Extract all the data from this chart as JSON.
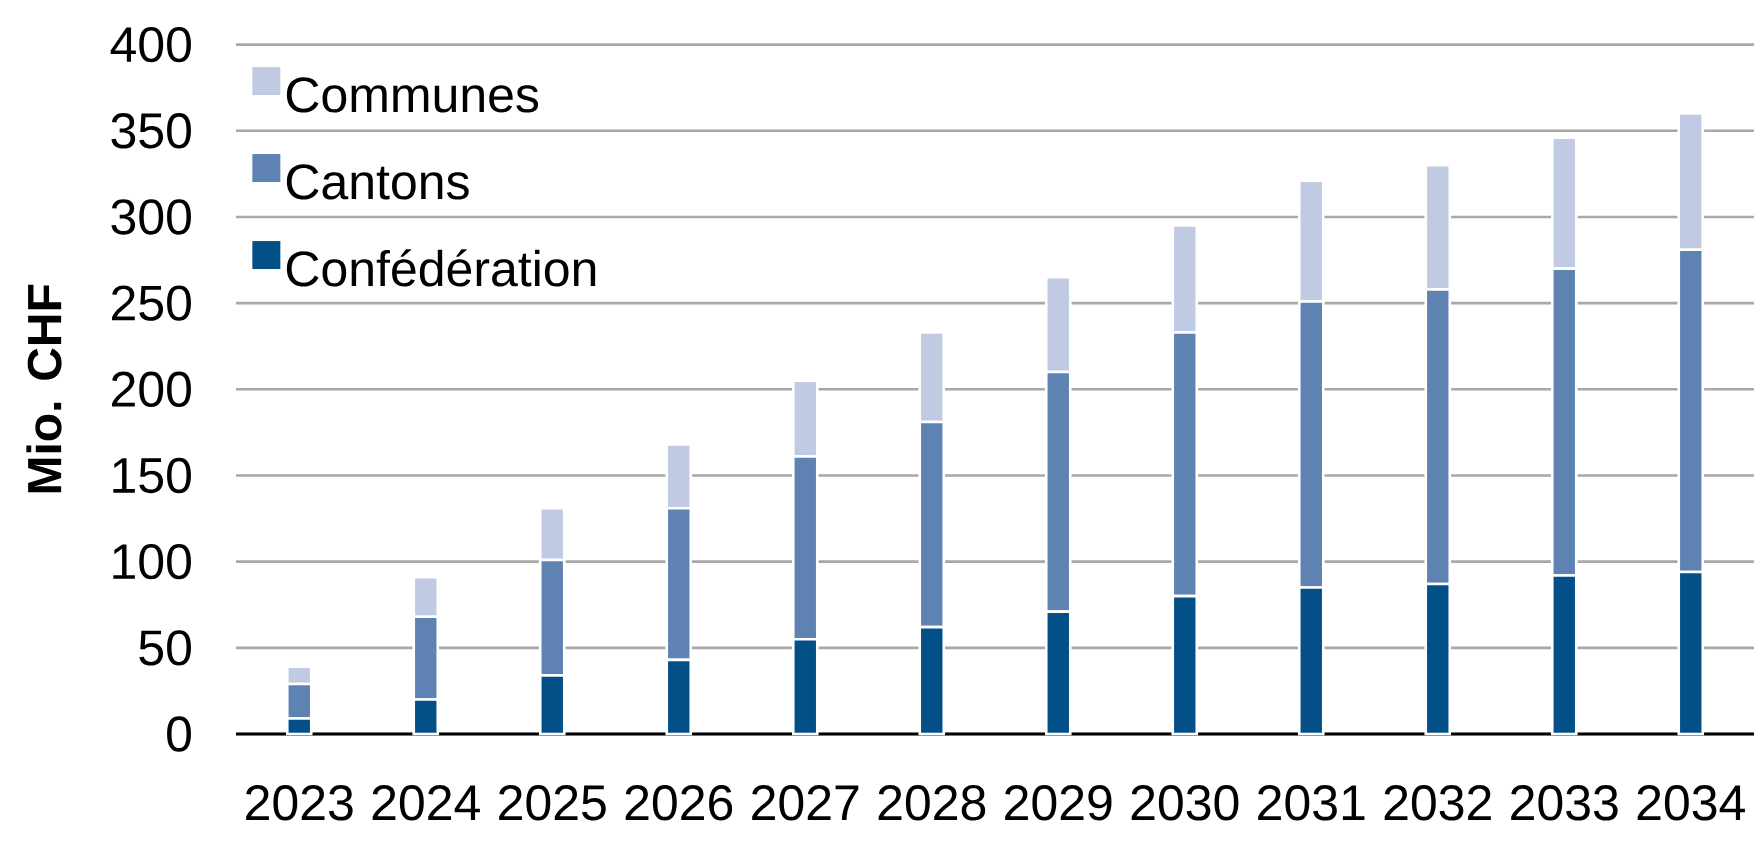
{
  "chart_data": {
    "type": "bar",
    "stacked": true,
    "ylabel": "Mio. CHF",
    "categories": [
      "2023",
      "2024",
      "2025",
      "2026",
      "2027",
      "2028",
      "2029",
      "2030",
      "2031",
      "2032",
      "2033",
      "2034"
    ],
    "series": [
      {
        "name": "Confédération",
        "color": "#034f87",
        "values": [
          9,
          20,
          34,
          43,
          55,
          62,
          71,
          80,
          85,
          87,
          92,
          94
        ]
      },
      {
        "name": "Cantons",
        "color": "#5e83b3",
        "values": [
          20,
          48,
          67,
          88,
          106,
          119,
          139,
          153,
          166,
          171,
          178,
          187
        ]
      },
      {
        "name": "Communes",
        "color": "#c0cbe3",
        "values": [
          10,
          23,
          30,
          37,
          44,
          52,
          55,
          62,
          70,
          72,
          76,
          79
        ]
      }
    ],
    "ylim": [
      0,
      400
    ],
    "yticks": [
      0,
      50,
      100,
      150,
      200,
      250,
      300,
      350,
      400
    ],
    "grid": "y",
    "legend": "top left"
  }
}
